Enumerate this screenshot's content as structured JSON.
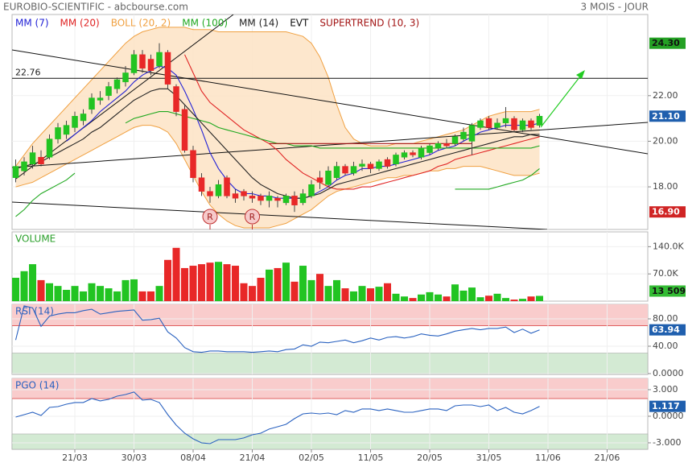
{
  "header": {
    "title": "EUROBIO-SCIENTIFIC - abcbourse.com",
    "period": "3 MOIS - JOUR"
  },
  "chart_data": [
    {
      "type": "candlestick",
      "xlim": [
        -0.43,
        74.81
      ],
      "xticks": [
        {
          "value": 7,
          "label": "21/03"
        },
        {
          "value": 14,
          "label": "30/03"
        },
        {
          "value": 21,
          "label": "08/04"
        },
        {
          "value": 28,
          "label": "21/04"
        },
        {
          "value": 35,
          "label": "02/05"
        },
        {
          "value": 42,
          "label": "11/05"
        },
        {
          "value": 49,
          "label": "20/05"
        },
        {
          "value": 56,
          "label": "31/05"
        },
        {
          "value": 63,
          "label": "11/06"
        },
        {
          "value": 70,
          "label": "21/06"
        }
      ],
      "ylim": [
        16.13,
        25.56
      ],
      "yticks": [
        {
          "value": 18,
          "label": "18.00"
        },
        {
          "value": 20,
          "label": "20.00"
        },
        {
          "value": 22,
          "label": "22.00"
        }
      ],
      "up_color": "#22c422",
      "down_color": "#e82828",
      "open": [
        18.4,
        18.7,
        19.0,
        19.3,
        19.3,
        20.1,
        20.3,
        20.6,
        20.9,
        21.4,
        21.8,
        22.0,
        22.3,
        22.6,
        23.0,
        23.8,
        23.6,
        23.3,
        23.9,
        22.4,
        21.4,
        19.6,
        18.4,
        17.8,
        17.6,
        18.4,
        17.7,
        17.8,
        17.6,
        17.6,
        17.4,
        17.5,
        17.3,
        17.6,
        17.3,
        17.6,
        18.4,
        18.1,
        18.4,
        18.9,
        18.6,
        18.9,
        19.0,
        18.8,
        19.2,
        19.0,
        19.3,
        19.5,
        19.3,
        19.5,
        19.7,
        19.9,
        19.9,
        20.1,
        20.0,
        20.6,
        21.0,
        20.6,
        20.8,
        21.0,
        20.5,
        20.9,
        20.7
      ],
      "high": [
        19.2,
        19.3,
        19.8,
        19.6,
        20.3,
        20.8,
        20.9,
        21.3,
        21.4,
        22.1,
        22.2,
        22.6,
        22.8,
        23.3,
        24.0,
        24.0,
        23.8,
        24.3,
        24.0,
        22.5,
        21.6,
        19.8,
        18.6,
        18.0,
        18.3,
        18.5,
        17.9,
        17.9,
        17.8,
        17.7,
        17.8,
        17.6,
        17.7,
        17.8,
        17.9,
        18.3,
        18.7,
        18.9,
        19.1,
        19.0,
        19.1,
        19.2,
        19.1,
        19.2,
        19.3,
        19.5,
        19.6,
        19.6,
        19.8,
        19.9,
        20.0,
        20.1,
        20.3,
        20.6,
        20.8,
        21.0,
        21.1,
        21.0,
        21.5,
        21.1,
        21.0,
        21.0,
        21.2
      ],
      "low": [
        18.2,
        18.5,
        18.8,
        18.9,
        19.2,
        19.9,
        20.1,
        20.4,
        20.7,
        21.2,
        21.6,
        21.8,
        22.1,
        22.4,
        22.9,
        23.0,
        22.9,
        23.2,
        22.3,
        21.1,
        19.5,
        18.2,
        17.6,
        17.3,
        17.5,
        17.5,
        17.3,
        17.4,
        17.3,
        17.2,
        17.1,
        17.1,
        17.2,
        16.9,
        17.2,
        17.5,
        17.9,
        18.0,
        18.3,
        18.5,
        18.5,
        18.7,
        18.6,
        18.7,
        18.8,
        18.9,
        19.2,
        19.3,
        19.2,
        19.4,
        19.6,
        19.7,
        19.8,
        20.0,
        19.4,
        20.5,
        20.5,
        20.5,
        20.6,
        20.4,
        20.4,
        20.5,
        20.6
      ],
      "close": [
        18.9,
        19.1,
        19.5,
        19.0,
        20.1,
        20.6,
        20.7,
        21.1,
        21.2,
        21.9,
        21.9,
        22.4,
        22.7,
        23.0,
        23.8,
        23.2,
        23.1,
        23.9,
        22.5,
        21.3,
        19.6,
        18.4,
        17.8,
        17.6,
        18.1,
        17.6,
        17.5,
        17.6,
        17.5,
        17.4,
        17.6,
        17.4,
        17.6,
        17.2,
        17.7,
        18.1,
        18.2,
        18.7,
        18.9,
        18.6,
        18.9,
        19.0,
        18.8,
        19.1,
        18.9,
        19.4,
        19.5,
        19.4,
        19.7,
        19.8,
        19.9,
        19.8,
        20.2,
        20.4,
        20.7,
        20.9,
        20.6,
        20.8,
        21.0,
        20.5,
        20.9,
        20.6,
        21.1
      ],
      "series": [
        {
          "name": "MM (7)",
          "color": "#2323d6",
          "values": [
            null,
            null,
            null,
            null,
            null,
            null,
            20.0,
            20.3,
            20.6,
            20.9,
            21.3,
            21.6,
            21.9,
            22.2,
            22.6,
            22.9,
            23.1,
            23.3,
            23.2,
            22.9,
            22.2,
            21.4,
            20.5,
            19.5,
            18.8,
            18.3,
            17.9,
            17.7,
            17.7,
            17.6,
            17.6,
            17.5,
            17.5,
            17.5,
            17.5,
            17.6,
            17.8,
            18.0,
            18.3,
            18.5,
            18.6,
            18.8,
            18.8,
            18.9,
            18.9,
            19.0,
            19.1,
            19.2,
            19.3,
            19.4,
            19.6,
            19.7,
            19.8,
            20.0,
            20.2,
            20.4,
            20.5,
            20.6,
            20.7,
            20.7,
            20.7,
            20.7,
            20.8
          ]
        },
        {
          "name": "MM (20)",
          "color": "#e02424",
          "values": [
            null,
            null,
            null,
            null,
            null,
            null,
            null,
            null,
            null,
            null,
            null,
            null,
            null,
            null,
            null,
            null,
            null,
            null,
            null,
            null,
            23.8,
            23.0,
            22.2,
            21.7,
            21.4,
            21.1,
            20.8,
            20.5,
            20.3,
            20.1,
            19.9,
            19.6,
            19.2,
            18.9,
            18.6,
            18.4,
            18.2,
            18.0,
            17.9,
            17.9,
            17.9,
            18.0,
            18.0,
            18.1,
            18.2,
            18.3,
            18.4,
            18.5,
            18.6,
            18.7,
            18.9,
            19.0,
            19.2,
            19.3,
            19.4,
            19.5,
            19.6,
            19.7,
            19.8,
            19.9,
            20.0,
            20.1,
            20.2
          ]
        },
        {
          "name": "BOLL (20, 2)",
          "color": "#f0a040",
          "fill": "#fde3c4",
          "values": [
            18.9,
            19.4,
            19.9,
            20.3,
            20.7,
            21.1,
            21.5,
            21.9,
            22.3,
            22.7,
            23.1,
            23.5,
            23.9,
            24.3,
            24.6,
            24.8,
            24.9,
            25.0,
            25.0,
            25.0,
            25.0,
            24.9,
            24.9,
            24.9,
            24.8,
            24.8,
            24.8,
            24.8,
            24.8,
            24.8,
            24.8,
            24.8,
            24.8,
            24.7,
            24.6,
            24.3,
            23.7,
            22.8,
            21.6,
            20.6,
            20.1,
            19.9,
            19.8,
            19.8,
            19.8,
            19.9,
            19.9,
            19.9,
            20.0,
            20.1,
            20.2,
            20.3,
            20.4,
            20.5,
            20.7,
            20.9,
            21.1,
            21.2,
            21.3,
            21.3,
            21.3,
            21.3,
            21.4
          ],
          "lower": [
            18.0,
            18.1,
            18.2,
            18.4,
            18.6,
            18.8,
            19.0,
            19.2,
            19.4,
            19.6,
            19.8,
            20.0,
            20.2,
            20.4,
            20.6,
            20.7,
            20.7,
            20.6,
            20.4,
            19.9,
            19.2,
            18.5,
            17.8,
            17.2,
            16.8,
            16.5,
            16.3,
            16.2,
            16.2,
            16.2,
            16.2,
            16.3,
            16.4,
            16.6,
            16.8,
            17.0,
            17.3,
            17.6,
            17.8,
            17.9,
            18.0,
            18.1,
            18.2,
            18.3,
            18.4,
            18.4,
            18.5,
            18.5,
            18.6,
            18.7,
            18.7,
            18.8,
            18.8,
            18.9,
            18.9,
            18.9,
            18.8,
            18.7,
            18.6,
            18.5,
            18.5,
            18.5,
            18.6
          ]
        },
        {
          "name": "MM (100)",
          "color": "#1fa81f",
          "values": [
            null,
            null,
            null,
            null,
            null,
            null,
            null,
            null,
            null,
            null,
            null,
            null,
            null,
            20.8,
            21.0,
            21.1,
            21.2,
            21.3,
            21.3,
            21.2,
            21.1,
            21.0,
            20.9,
            20.8,
            20.6,
            20.5,
            20.4,
            20.3,
            20.2,
            20.1,
            20.0,
            19.9,
            19.9,
            19.8,
            19.8,
            19.8,
            19.7,
            19.7,
            19.7,
            19.7,
            19.7,
            19.7,
            19.7,
            19.7,
            19.7,
            19.7,
            19.7,
            19.7,
            19.7,
            19.7,
            19.7,
            19.7,
            19.7,
            19.7,
            19.7,
            19.7,
            19.7,
            19.7,
            19.7,
            19.7,
            19.7,
            19.7,
            19.8
          ]
        },
        {
          "name": "MM (14)",
          "color": "#222222",
          "values": [
            18.8,
            18.9,
            19.0,
            19.1,
            19.3,
            19.5,
            19.7,
            19.9,
            20.1,
            20.4,
            20.6,
            20.9,
            21.2,
            21.5,
            21.8,
            22.0,
            22.2,
            22.3,
            22.3,
            22.0,
            21.6,
            21.2,
            20.8,
            20.4,
            20.0,
            19.6,
            19.2,
            18.8,
            18.4,
            18.1,
            17.9,
            17.7,
            17.6,
            17.5,
            17.5,
            17.6,
            17.7,
            17.9,
            18.1,
            18.2,
            18.3,
            18.4,
            18.5,
            18.6,
            18.7,
            18.8,
            18.9,
            19.0,
            19.1,
            19.2,
            19.3,
            19.4,
            19.5,
            19.6,
            19.7,
            19.8,
            19.9,
            20.0,
            20.1,
            20.2,
            20.2,
            20.3,
            20.3
          ]
        },
        {
          "name": "SUPERTREND (10, 3)",
          "color": "#a31515",
          "up_color": "#1fa81f",
          "values": [
            null,
            null,
            null,
            null,
            null,
            null,
            null,
            null,
            null,
            null,
            null,
            null,
            null,
            null,
            null,
            null,
            null,
            null,
            null,
            null,
            null,
            null,
            null,
            null,
            null,
            null,
            null,
            null,
            null,
            null,
            19.9,
            19.9,
            19.9,
            19.9,
            19.9,
            19.9,
            19.9,
            19.9,
            19.9,
            19.9,
            19.9,
            19.9,
            19.9,
            19.9,
            19.9,
            19.9,
            19.9,
            19.9,
            19.9,
            19.9,
            19.9,
            19.9,
            19.9,
            19.9,
            19.9,
            null,
            null,
            null,
            null,
            null,
            null,
            null,
            null
          ],
          "up_values": [
            16.7,
            17.0,
            17.4,
            17.7,
            17.9,
            18.1,
            18.3,
            18.6,
            null,
            null,
            null,
            null,
            null,
            null,
            null,
            null,
            null,
            null,
            null,
            null,
            null,
            null,
            null,
            null,
            null,
            null,
            null,
            null,
            null,
            null,
            null,
            null,
            null,
            null,
            null,
            null,
            null,
            null,
            null,
            null,
            null,
            null,
            null,
            null,
            null,
            null,
            null,
            null,
            null,
            null,
            null,
            null,
            17.9,
            17.9,
            17.9,
            17.9,
            17.9,
            18.0,
            18.1,
            18.2,
            18.3,
            18.5,
            18.8
          ]
        }
      ],
      "events": {
        "name": "EVT",
        "markers": [
          {
            "index": 23,
            "label": "R"
          },
          {
            "index": 28,
            "label": "R"
          }
        ]
      },
      "levels": [
        22.76
      ],
      "high_label": "24.30",
      "last_label": "21.10",
      "low_label": "16.90"
    },
    {
      "type": "bar",
      "title": "VOLUME",
      "ylim": [
        0,
        178000
      ],
      "yticks": [
        {
          "value": 70000,
          "label": "70.0K"
        },
        {
          "value": 140000,
          "label": "140.0K"
        }
      ],
      "values": [
        60000,
        77000,
        95000,
        54000,
        46000,
        39000,
        29000,
        39000,
        25000,
        46000,
        39000,
        33000,
        25000,
        54000,
        56000,
        25000,
        25000,
        39000,
        106000,
        137000,
        85000,
        91000,
        95000,
        99000,
        101000,
        95000,
        91000,
        46000,
        39000,
        60000,
        81000,
        85000,
        99000,
        50000,
        91000,
        54000,
        70000,
        39000,
        54000,
        33000,
        25000,
        39000,
        33000,
        37000,
        46000,
        19000,
        12000,
        8000,
        17000,
        23000,
        17000,
        12000,
        43000,
        27000,
        35000,
        10000,
        14000,
        19000,
        8000,
        4000,
        6000,
        12000,
        13509
      ],
      "last_label": "13 509",
      "label_color": "#33bb33"
    },
    {
      "type": "line",
      "title": "RSI (14)",
      "color": "#2a62c0",
      "ylim": [
        -1.2,
        101.2
      ],
      "yticks": [
        {
          "value": 0,
          "label": "0.0000"
        },
        {
          "value": 40,
          "label": "40.00"
        },
        {
          "value": 80,
          "label": "80.00"
        }
      ],
      "zones": {
        "upper": 70,
        "lower": 30
      },
      "values": [
        49,
        99,
        96,
        69,
        84,
        87,
        89,
        89,
        92,
        94,
        87,
        89,
        91,
        92,
        93,
        78,
        79,
        81,
        61,
        52,
        38,
        32,
        31,
        33,
        33,
        32,
        32,
        32,
        31,
        32,
        33,
        32,
        35,
        36,
        42,
        40,
        46,
        45,
        47,
        49,
        45,
        48,
        52,
        49,
        53,
        54,
        52,
        54,
        58,
        56,
        55,
        58,
        62,
        64,
        66,
        64,
        66,
        66,
        68,
        60,
        65,
        59,
        63.94
      ]
    },
    {
      "type": "line",
      "title": "PGO (14)",
      "color": "#2a62c0",
      "ylim": [
        -3.73,
        4.27
      ],
      "yticks": [
        {
          "value": -3,
          "label": "-3.000"
        },
        {
          "value": 0,
          "label": "0.0000"
        },
        {
          "value": 3,
          "label": "3.000"
        }
      ],
      "zones": {
        "upper": 2,
        "lower": -2
      },
      "values": [
        -0.09,
        0.18,
        0.45,
        0.09,
        1.0,
        1.09,
        1.36,
        1.55,
        1.55,
        2.0,
        1.73,
        1.91,
        2.27,
        2.45,
        2.73,
        1.82,
        1.91,
        1.55,
        0.18,
        -1.0,
        -1.91,
        -2.55,
        -3.0,
        -3.09,
        -2.64,
        -2.64,
        -2.64,
        -2.45,
        -2.09,
        -1.91,
        -1.45,
        -1.18,
        -0.91,
        -0.27,
        0.27,
        0.36,
        0.27,
        0.36,
        0.18,
        0.64,
        0.45,
        0.82,
        0.82,
        0.64,
        0.82,
        0.64,
        0.45,
        0.45,
        0.64,
        0.82,
        0.82,
        0.64,
        1.18,
        1.27,
        1.27,
        1.09,
        1.27,
        0.64,
        1.0,
        0.45,
        0.27,
        0.64,
        1.117
      ]
    }
  ]
}
